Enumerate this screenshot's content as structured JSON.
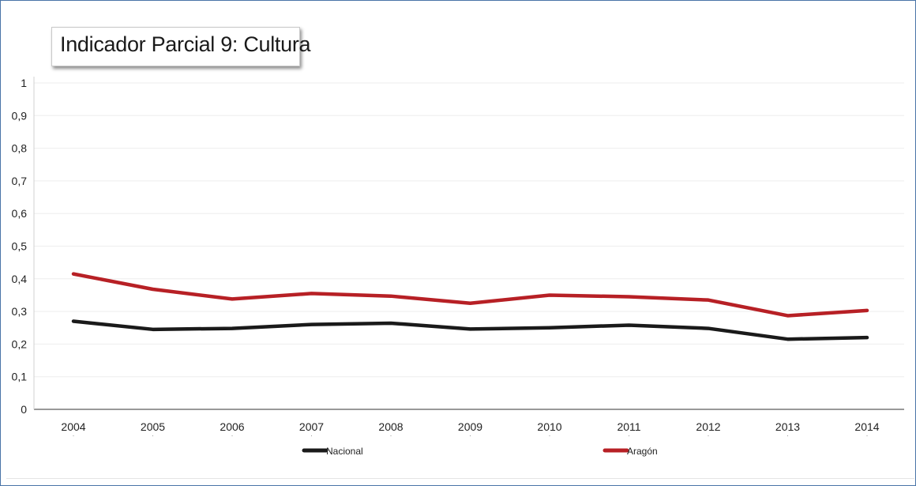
{
  "chart_data": {
    "type": "line",
    "title": "Indicador Parcial 9: Cultura",
    "xlabel": "",
    "ylabel": "",
    "categories": [
      "2004",
      "2005",
      "2006",
      "2007",
      "2008",
      "2009",
      "2010",
      "2011",
      "2012",
      "2013",
      "2014"
    ],
    "yticks": [
      "0",
      "0,1",
      "0,2",
      "0,3",
      "0,4",
      "0,5",
      "0,6",
      "0,7",
      "0,8",
      "0,9",
      "1"
    ],
    "ylim": [
      0,
      1
    ],
    "grid": true,
    "legend_position": "bottom",
    "series": [
      {
        "name": "Nacional",
        "color": "#1a1a1a",
        "values": [
          0.27,
          0.245,
          0.248,
          0.26,
          0.264,
          0.246,
          0.25,
          0.258,
          0.248,
          0.215,
          0.22
        ]
      },
      {
        "name": "Aragón",
        "color": "#b72025",
        "values": [
          0.415,
          0.368,
          0.338,
          0.355,
          0.347,
          0.325,
          0.35,
          0.345,
          0.335,
          0.287,
          0.303
        ]
      }
    ]
  }
}
